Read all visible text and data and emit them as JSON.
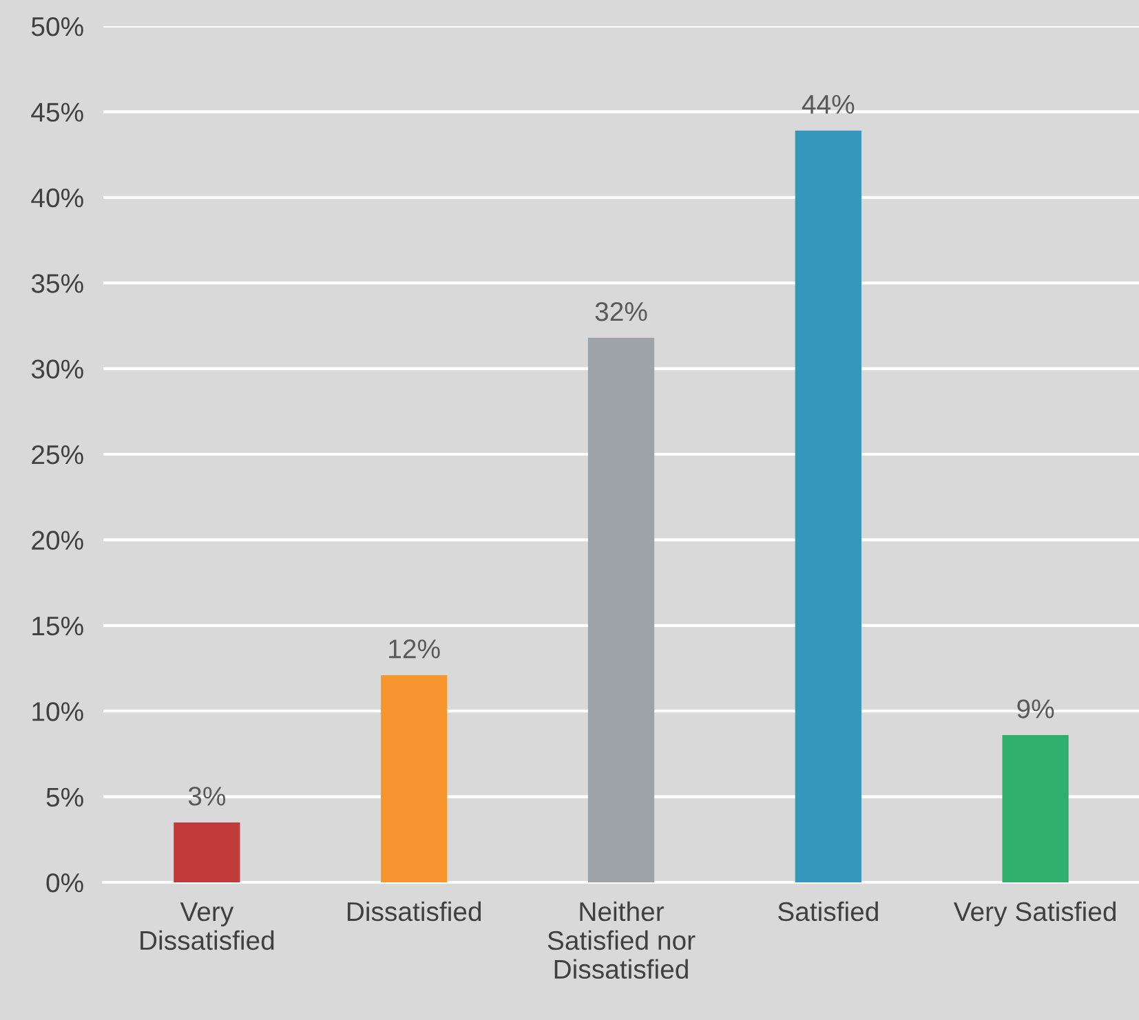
{
  "chart_data": {
    "type": "bar",
    "categories": [
      "Very\nDissatisfied",
      "Dissatisfied",
      "Neither\nSatisfied nor\nDissatisfied",
      "Satisfied",
      "Very Satisfied"
    ],
    "values": [
      3.5,
      12.1,
      31.8,
      43.9,
      8.6
    ],
    "value_labels": [
      "3%",
      "12%",
      "32%",
      "44%",
      "9%"
    ],
    "colors": [
      "#c0393b",
      "#f7962f",
      "#9ea3a8",
      "#3498bd",
      "#2eaf6c"
    ],
    "ylim": [
      0,
      50
    ],
    "yticks": [
      {
        "value": 0,
        "label": "0%"
      },
      {
        "value": 5,
        "label": "5%"
      },
      {
        "value": 10,
        "label": "10%"
      },
      {
        "value": 15,
        "label": "15%"
      },
      {
        "value": 20,
        "label": "20%"
      },
      {
        "value": 25,
        "label": "25%"
      },
      {
        "value": 30,
        "label": "30%"
      },
      {
        "value": 35,
        "label": "35%"
      },
      {
        "value": 40,
        "label": "40%"
      },
      {
        "value": 45,
        "label": "45%"
      },
      {
        "value": 50,
        "label": "50%"
      }
    ],
    "grid": "y",
    "legend": false
  }
}
